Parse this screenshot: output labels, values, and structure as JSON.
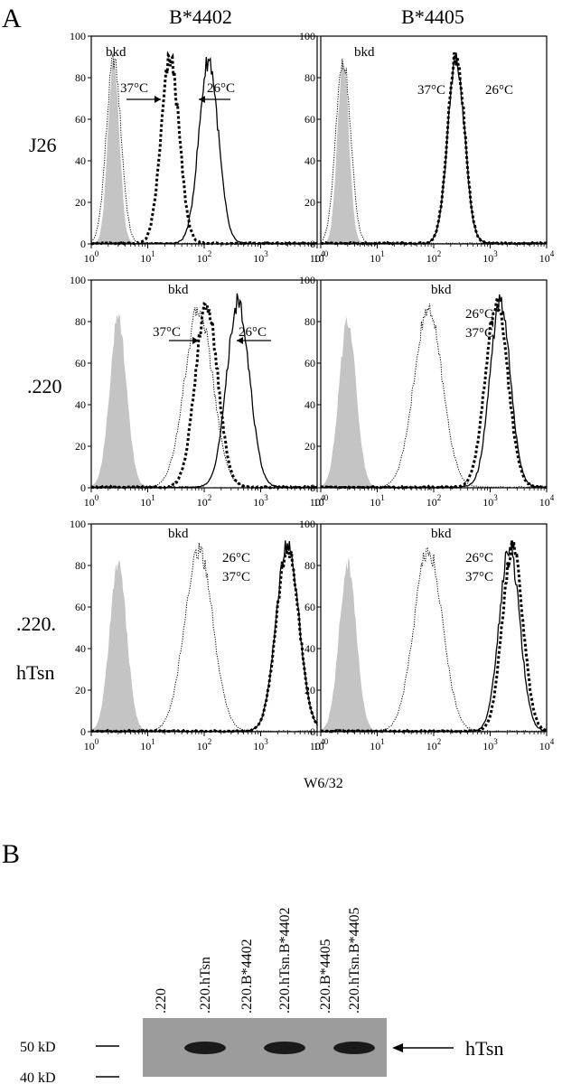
{
  "panel_a": {
    "letter": "A",
    "xlabel": "W6/32"
  },
  "panel_b": {
    "letter": "B",
    "lanes": [
      ".220",
      ".220.hTsn",
      ".220.B*4402",
      ".220.hTsn.B*4402",
      ".220.B*4405",
      ".220.hTsn.B*4405"
    ],
    "markers": [
      "50 kD",
      "40 kD"
    ],
    "band_label": "hTsn",
    "band_lanes": [
      1,
      3,
      5
    ]
  },
  "columns": [
    "B*4402",
    "B*4405"
  ],
  "rows": [
    "J26",
    ".220",
    ".220.",
    "hTsn"
  ],
  "y_ticks": [
    "0",
    "20",
    "40",
    "60",
    "80",
    "100"
  ],
  "x_ticks": [
    "10",
    "10",
    "10",
    "10",
    "10"
  ],
  "x_tick_exp": [
    "0",
    "1",
    "2",
    "3",
    "4"
  ],
  "chart_data": [
    {
      "type": "area",
      "x_scale": "log",
      "xlim": [
        1,
        10000
      ],
      "ylim": [
        0,
        100
      ],
      "annotations": [
        "bkd",
        "37°C",
        "26°C"
      ],
      "series": [
        {
          "style": "filled-gray",
          "peak": 2.5,
          "width": 0.1,
          "height": 93
        },
        {
          "style": "dotted-thin",
          "peak": 2.5,
          "width": 0.13,
          "height": 93
        },
        {
          "style": "dashed-thick",
          "peak": 25,
          "width": 0.16,
          "height": 93
        },
        {
          "style": "solid",
          "peak": 120,
          "width": 0.17,
          "height": 93
        }
      ]
    },
    {
      "type": "area",
      "x_scale": "log",
      "xlim": [
        1,
        10000
      ],
      "ylim": [
        0,
        100
      ],
      "annotations": [
        "bkd",
        "37°C",
        "26°C"
      ],
      "series": [
        {
          "style": "filled-gray",
          "peak": 2.5,
          "width": 0.1,
          "height": 93
        },
        {
          "style": "dotted-thin",
          "peak": 2.5,
          "width": 0.13,
          "height": 93
        },
        {
          "style": "dashed-thick",
          "peak": 250,
          "width": 0.15,
          "height": 95
        },
        {
          "style": "solid",
          "peak": 250,
          "width": 0.15,
          "height": 92
        }
      ]
    },
    {
      "type": "area",
      "x_scale": "log",
      "xlim": [
        1,
        10000
      ],
      "ylim": [
        0,
        100
      ],
      "annotations": [
        "bkd",
        "37°C",
        "26°C"
      ],
      "series": [
        {
          "style": "filled-gray",
          "peak": 3,
          "width": 0.15,
          "height": 85
        },
        {
          "style": "dotted-thin",
          "peak": 80,
          "width": 0.25,
          "height": 90
        },
        {
          "style": "dashed-thick",
          "peak": 110,
          "width": 0.2,
          "height": 92
        },
        {
          "style": "solid",
          "peak": 400,
          "width": 0.2,
          "height": 94
        }
      ]
    },
    {
      "type": "area",
      "x_scale": "log",
      "xlim": [
        1,
        10000
      ],
      "ylim": [
        0,
        100
      ],
      "annotations": [
        "bkd",
        "26°C",
        "37°C"
      ],
      "series": [
        {
          "style": "filled-gray",
          "peak": 3,
          "width": 0.15,
          "height": 85
        },
        {
          "style": "dotted-thin",
          "peak": 80,
          "width": 0.25,
          "height": 90
        },
        {
          "style": "dashed-thick",
          "peak": 1300,
          "width": 0.2,
          "height": 93
        },
        {
          "style": "solid",
          "peak": 1500,
          "width": 0.18,
          "height": 94
        }
      ]
    },
    {
      "type": "area",
      "x_scale": "log",
      "xlim": [
        1,
        10000
      ],
      "ylim": [
        0,
        100
      ],
      "annotations": [
        "bkd",
        "26°C",
        "37°C"
      ],
      "series": [
        {
          "style": "filled-gray",
          "peak": 3,
          "width": 0.15,
          "height": 85
        },
        {
          "style": "dotted-thin",
          "peak": 80,
          "width": 0.25,
          "height": 92
        },
        {
          "style": "dashed-thick",
          "peak": 3000,
          "width": 0.2,
          "height": 93
        },
        {
          "style": "solid",
          "peak": 3000,
          "width": 0.2,
          "height": 95
        }
      ]
    },
    {
      "type": "area",
      "x_scale": "log",
      "xlim": [
        1,
        10000
      ],
      "ylim": [
        0,
        100
      ],
      "annotations": [
        "bkd",
        "26°C",
        "37°C"
      ],
      "series": [
        {
          "style": "filled-gray",
          "peak": 3,
          "width": 0.15,
          "height": 85
        },
        {
          "style": "dotted-thin",
          "peak": 80,
          "width": 0.25,
          "height": 92
        },
        {
          "style": "dashed-thick",
          "peak": 2500,
          "width": 0.18,
          "height": 94
        },
        {
          "style": "solid",
          "peak": 2200,
          "width": 0.18,
          "height": 93
        }
      ]
    }
  ]
}
